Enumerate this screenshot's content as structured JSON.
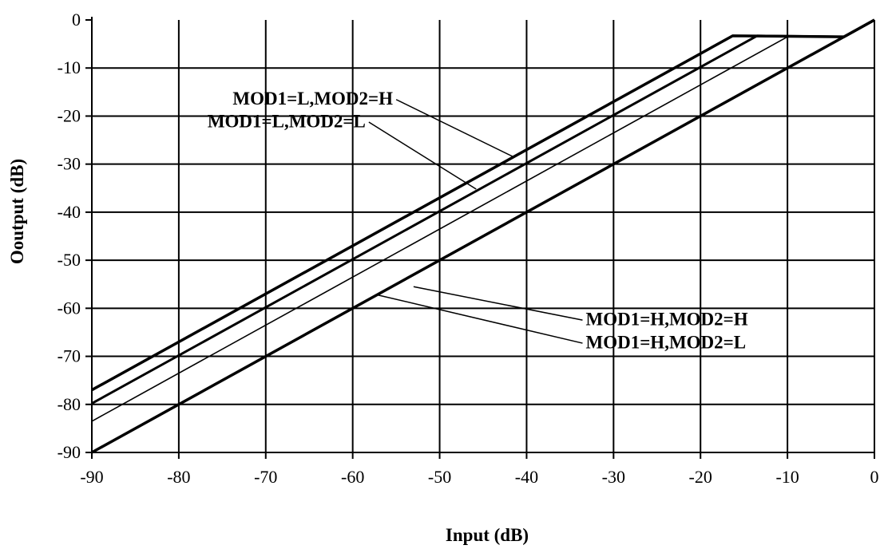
{
  "chart_data": {
    "type": "line",
    "xlabel": "Input (dB)",
    "ylabel": "Ooutput (dB)",
    "xlim": [
      -90,
      0
    ],
    "ylim": [
      -90,
      0
    ],
    "x_ticks": [
      "-90",
      "-80",
      "-70",
      "-60",
      "-50",
      "-40",
      "-30",
      "-20",
      "-10",
      "0"
    ],
    "y_ticks": [
      "0",
      "-10",
      "-20",
      "-30",
      "-40",
      "-50",
      "-60",
      "-70",
      "-80",
      "-90"
    ],
    "grid": true,
    "series": [
      {
        "name": "MOD1=L,MOD2=H",
        "x": [
          -90,
          -16.3,
          -3.5,
          0
        ],
        "y": [
          -77,
          -3.3,
          -3.5,
          0
        ]
      },
      {
        "name": "MOD1=L,MOD2=L",
        "x": [
          -90,
          -13.5,
          -3.5,
          0
        ],
        "y": [
          -79.8,
          -3.3,
          -3.5,
          0
        ]
      },
      {
        "name": "MOD1=H,MOD2=H",
        "x": [
          -90,
          -9.8,
          -3.5,
          0
        ],
        "y": [
          -83.5,
          -3.3,
          -3.5,
          0
        ]
      },
      {
        "name": "MOD1=H,MOD2=L",
        "x": [
          -90,
          0
        ],
        "y": [
          -90,
          0
        ]
      }
    ],
    "annotations": [
      {
        "series": 0,
        "text": "MOD1=L,MOD2=H",
        "text_x": -73.8,
        "text_y": -17.6,
        "anchor": "start",
        "point_x": -41.5,
        "point_y": -28.5
      },
      {
        "series": 1,
        "text": "MOD1=L,MOD2=L",
        "text_x": -76.7,
        "text_y": -22.3,
        "anchor": "start",
        "point_x": -45.8,
        "point_y": -35.2
      },
      {
        "series": 2,
        "text": "MOD1=H,MOD2=H",
        "text_x": -33.2,
        "text_y": -63.5,
        "anchor": "start",
        "point_x": -53.0,
        "point_y": -55.5
      },
      {
        "series": 3,
        "text": "MOD1=H,MOD2=L",
        "text_x": -33.2,
        "text_y": -68.3,
        "anchor": "start",
        "point_x": -57.2,
        "point_y": -57.2
      }
    ]
  }
}
